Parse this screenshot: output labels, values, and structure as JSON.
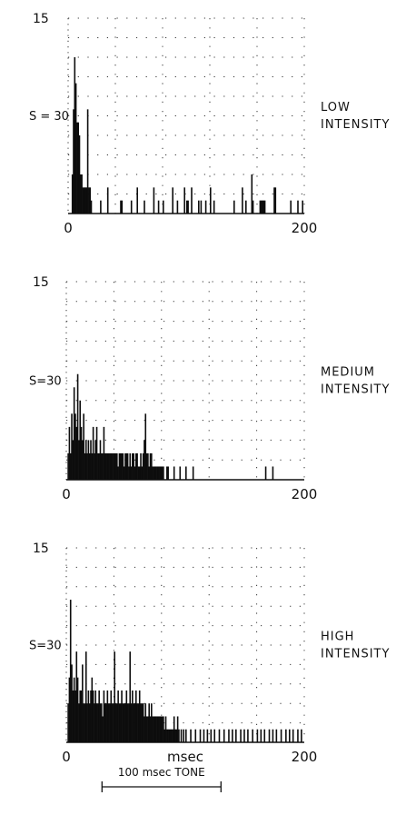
{
  "chart_data": [
    {
      "type": "bar",
      "panel_label": "LOW INTENSITY",
      "label_line1": "LOW",
      "label_line2": "INTENSITY",
      "ymax_label": "15",
      "s_label": "S = 30",
      "xlim": [
        0,
        200
      ],
      "ylim": [
        0,
        15
      ],
      "x_ticks": [
        "0",
        "200"
      ],
      "grid": "dotted",
      "bars": [
        [
          3,
          3
        ],
        [
          4,
          8
        ],
        [
          5,
          12
        ],
        [
          6,
          10
        ],
        [
          7,
          7
        ],
        [
          8,
          7
        ],
        [
          9,
          6
        ],
        [
          10,
          3
        ],
        [
          11,
          3
        ],
        [
          12,
          2
        ],
        [
          13,
          2
        ],
        [
          14,
          2
        ],
        [
          15,
          2
        ],
        [
          16,
          8
        ],
        [
          17,
          2
        ],
        [
          18,
          2
        ],
        [
          19,
          1
        ],
        [
          27,
          1
        ],
        [
          33,
          2
        ],
        [
          44,
          1
        ],
        [
          45,
          1
        ],
        [
          53,
          1
        ],
        [
          58,
          2
        ],
        [
          64,
          1
        ],
        [
          72,
          2
        ],
        [
          76,
          1
        ],
        [
          80,
          1
        ],
        [
          88,
          2
        ],
        [
          92,
          1
        ],
        [
          98,
          2
        ],
        [
          100,
          1
        ],
        [
          101,
          1
        ],
        [
          104,
          2
        ],
        [
          110,
          1
        ],
        [
          112,
          1
        ],
        [
          116,
          1
        ],
        [
          120,
          2
        ],
        [
          123,
          1
        ],
        [
          140,
          1
        ],
        [
          147,
          2
        ],
        [
          150,
          1
        ],
        [
          155,
          3
        ],
        [
          156,
          1
        ],
        [
          162,
          1
        ],
        [
          163,
          1
        ],
        [
          164,
          1
        ],
        [
          165,
          1
        ],
        [
          166,
          1
        ],
        [
          174,
          2
        ],
        [
          175,
          2
        ],
        [
          188,
          1
        ],
        [
          194,
          1
        ],
        [
          198,
          1
        ]
      ]
    },
    {
      "type": "bar",
      "panel_label": "MEDIUM INTENSITY",
      "label_line1": "MEDIUM",
      "label_line2": "INTENSITY",
      "ymax_label": "15",
      "s_label": "S=30",
      "xlim": [
        0,
        200
      ],
      "ylim": [
        0,
        15
      ],
      "x_ticks": [
        "0",
        "200"
      ],
      "grid": "dotted",
      "bars": [
        [
          1,
          2
        ],
        [
          2,
          4
        ],
        [
          3,
          2
        ],
        [
          4,
          5
        ],
        [
          5,
          3
        ],
        [
          6,
          7
        ],
        [
          7,
          5
        ],
        [
          8,
          4
        ],
        [
          9,
          8
        ],
        [
          10,
          3
        ],
        [
          11,
          6
        ],
        [
          12,
          4
        ],
        [
          13,
          3
        ],
        [
          14,
          5
        ],
        [
          15,
          2
        ],
        [
          16,
          3
        ],
        [
          17,
          2
        ],
        [
          18,
          3
        ],
        [
          19,
          2
        ],
        [
          20,
          3
        ],
        [
          21,
          2
        ],
        [
          22,
          4
        ],
        [
          23,
          2
        ],
        [
          24,
          3
        ],
        [
          25,
          4
        ],
        [
          26,
          2
        ],
        [
          27,
          2
        ],
        [
          28,
          3
        ],
        [
          29,
          2
        ],
        [
          30,
          2
        ],
        [
          31,
          4
        ],
        [
          32,
          2
        ],
        [
          33,
          2
        ],
        [
          34,
          2
        ],
        [
          35,
          2
        ],
        [
          36,
          2
        ],
        [
          37,
          2
        ],
        [
          38,
          2
        ],
        [
          39,
          2
        ],
        [
          40,
          2
        ],
        [
          41,
          2
        ],
        [
          42,
          2
        ],
        [
          43,
          1
        ],
        [
          44,
          2
        ],
        [
          45,
          2
        ],
        [
          46,
          2
        ],
        [
          47,
          2
        ],
        [
          48,
          1
        ],
        [
          49,
          2
        ],
        [
          50,
          2
        ],
        [
          51,
          2
        ],
        [
          52,
          1
        ],
        [
          53,
          2
        ],
        [
          54,
          1
        ],
        [
          55,
          2
        ],
        [
          56,
          2
        ],
        [
          57,
          1
        ],
        [
          58,
          2
        ],
        [
          59,
          2
        ],
        [
          60,
          1
        ],
        [
          61,
          1
        ],
        [
          62,
          2
        ],
        [
          63,
          1
        ],
        [
          64,
          2
        ],
        [
          65,
          3
        ],
        [
          66,
          5
        ],
        [
          67,
          2
        ],
        [
          68,
          2
        ],
        [
          69,
          1
        ],
        [
          70,
          2
        ],
        [
          71,
          2
        ],
        [
          72,
          1
        ],
        [
          73,
          1
        ],
        [
          74,
          1
        ],
        [
          75,
          1
        ],
        [
          76,
          1
        ],
        [
          77,
          1
        ],
        [
          78,
          1
        ],
        [
          79,
          1
        ],
        [
          80,
          1
        ],
        [
          81,
          1
        ],
        [
          84,
          1
        ],
        [
          85,
          1
        ],
        [
          90,
          1
        ],
        [
          95,
          1
        ],
        [
          100,
          1
        ],
        [
          106,
          1
        ],
        [
          167,
          1
        ],
        [
          173,
          1
        ]
      ]
    },
    {
      "type": "bar",
      "panel_label": "HIGH INTENSITY",
      "label_line1": "HIGH",
      "label_line2": "INTENSITY",
      "ymax_label": "15",
      "s_label": "S=30",
      "xlim": [
        0,
        200
      ],
      "ylim": [
        0,
        15
      ],
      "x_ticks": [
        "0",
        "msec",
        "200"
      ],
      "xlabel": "msec",
      "grid": "dotted",
      "bars": [
        [
          1,
          3
        ],
        [
          2,
          5
        ],
        [
          3,
          11
        ],
        [
          4,
          6
        ],
        [
          5,
          4
        ],
        [
          6,
          5
        ],
        [
          7,
          4
        ],
        [
          8,
          7
        ],
        [
          9,
          5
        ],
        [
          10,
          3
        ],
        [
          11,
          4
        ],
        [
          12,
          4
        ],
        [
          13,
          6
        ],
        [
          14,
          3
        ],
        [
          15,
          3
        ],
        [
          16,
          7
        ],
        [
          17,
          3
        ],
        [
          18,
          4
        ],
        [
          19,
          3
        ],
        [
          20,
          4
        ],
        [
          21,
          5
        ],
        [
          22,
          4
        ],
        [
          23,
          3
        ],
        [
          24,
          4
        ],
        [
          25,
          3
        ],
        [
          26,
          3
        ],
        [
          27,
          4
        ],
        [
          28,
          3
        ],
        [
          29,
          3
        ],
        [
          30,
          2
        ],
        [
          31,
          4
        ],
        [
          32,
          3
        ],
        [
          33,
          3
        ],
        [
          34,
          4
        ],
        [
          35,
          3
        ],
        [
          36,
          3
        ],
        [
          37,
          4
        ],
        [
          38,
          3
        ],
        [
          39,
          3
        ],
        [
          40,
          7
        ],
        [
          41,
          3
        ],
        [
          42,
          3
        ],
        [
          43,
          4
        ],
        [
          44,
          3
        ],
        [
          45,
          3
        ],
        [
          46,
          4
        ],
        [
          47,
          3
        ],
        [
          48,
          3
        ],
        [
          49,
          3
        ],
        [
          50,
          4
        ],
        [
          51,
          3
        ],
        [
          52,
          3
        ],
        [
          53,
          7
        ],
        [
          54,
          3
        ],
        [
          55,
          4
        ],
        [
          56,
          3
        ],
        [
          57,
          3
        ],
        [
          58,
          4
        ],
        [
          59,
          3
        ],
        [
          60,
          3
        ],
        [
          61,
          4
        ],
        [
          62,
          3
        ],
        [
          63,
          3
        ],
        [
          64,
          3
        ],
        [
          65,
          2
        ],
        [
          66,
          3
        ],
        [
          67,
          2
        ],
        [
          68,
          2
        ],
        [
          69,
          3
        ],
        [
          70,
          2
        ],
        [
          71,
          3
        ],
        [
          72,
          2
        ],
        [
          73,
          2
        ],
        [
          74,
          2
        ],
        [
          75,
          2
        ],
        [
          76,
          2
        ],
        [
          77,
          2
        ],
        [
          78,
          2
        ],
        [
          79,
          2
        ],
        [
          80,
          2
        ],
        [
          81,
          2
        ],
        [
          82,
          1
        ],
        [
          83,
          2
        ],
        [
          84,
          1
        ],
        [
          85,
          1
        ],
        [
          86,
          1
        ],
        [
          87,
          1
        ],
        [
          88,
          1
        ],
        [
          89,
          1
        ],
        [
          90,
          2
        ],
        [
          91,
          1
        ],
        [
          92,
          1
        ],
        [
          93,
          2
        ],
        [
          94,
          1
        ],
        [
          96,
          1
        ],
        [
          98,
          1
        ],
        [
          100,
          1
        ],
        [
          104,
          1
        ],
        [
          108,
          1
        ],
        [
          112,
          1
        ],
        [
          115,
          1
        ],
        [
          118,
          1
        ],
        [
          121,
          1
        ],
        [
          124,
          1
        ],
        [
          128,
          1
        ],
        [
          132,
          1
        ],
        [
          136,
          1
        ],
        [
          139,
          1
        ],
        [
          142,
          1
        ],
        [
          146,
          1
        ],
        [
          149,
          1
        ],
        [
          152,
          1
        ],
        [
          156,
          1
        ],
        [
          160,
          1
        ],
        [
          163,
          1
        ],
        [
          166,
          1
        ],
        [
          170,
          1
        ],
        [
          173,
          1
        ],
        [
          176,
          1
        ],
        [
          180,
          1
        ],
        [
          184,
          1
        ],
        [
          187,
          1
        ],
        [
          190,
          1
        ],
        [
          194,
          1
        ],
        [
          197,
          1
        ]
      ]
    }
  ],
  "tone_label": "100 msec TONE",
  "tone_range": [
    30,
    130
  ]
}
